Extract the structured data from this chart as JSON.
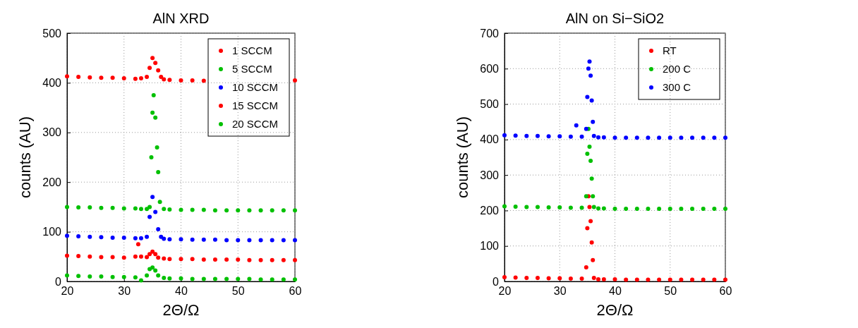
{
  "chart_data": [
    {
      "type": "scatter",
      "title": "AlN XRD",
      "xlabel": "2Θ/Ω",
      "ylabel": "counts (AU)",
      "xlim": [
        20,
        60
      ],
      "xticks": [
        20,
        30,
        40,
        50,
        60
      ],
      "ylim": [
        0,
        500
      ],
      "yticks": [
        0,
        100,
        200,
        300,
        400,
        500
      ],
      "grid": true,
      "legend": "top right",
      "marker": "circle",
      "series": [
        {
          "name": "1 SCCM",
          "color": "#ff0000",
          "x": [
            20,
            22,
            24,
            26,
            28,
            30,
            32,
            33,
            34,
            34.5,
            35,
            35.5,
            36,
            36.5,
            37,
            38,
            40,
            42,
            44,
            60
          ],
          "values": [
            413,
            412,
            411,
            410,
            410,
            409,
            408,
            409,
            412,
            430,
            450,
            440,
            425,
            412,
            407,
            406,
            405,
            405,
            404,
            405
          ]
        },
        {
          "name": "5 SCCM",
          "color": "#00c000",
          "x": [
            20,
            22,
            24,
            26,
            28,
            30,
            32,
            33,
            34,
            34.5,
            34.8,
            35,
            35.2,
            35.5,
            35.8,
            36,
            36.3,
            37,
            38,
            40,
            42,
            44,
            46,
            48,
            50,
            52,
            54,
            56,
            58,
            60
          ],
          "values": [
            150,
            149,
            149,
            148,
            148,
            147,
            147,
            146,
            146,
            150,
            250,
            340,
            375,
            330,
            270,
            220,
            160,
            146,
            145,
            144,
            144,
            144,
            143,
            143,
            143,
            143,
            143,
            143,
            143,
            143
          ]
        },
        {
          "name": "10 SCCM",
          "color": "#0000ff",
          "x": [
            20,
            22,
            24,
            26,
            28,
            30,
            32,
            33,
            34,
            34.5,
            35,
            35.5,
            36,
            36.5,
            37,
            38,
            40,
            42,
            44,
            46,
            48,
            50,
            52,
            54,
            56,
            58,
            60
          ],
          "values": [
            92,
            91,
            90,
            89,
            88,
            88,
            87,
            87,
            90,
            130,
            170,
            140,
            105,
            90,
            86,
            85,
            85,
            84,
            84,
            84,
            83,
            83,
            83,
            83,
            83,
            83,
            83
          ]
        },
        {
          "name": "15 SCCM",
          "color": "#ff0000",
          "x": [
            20,
            22,
            24,
            26,
            28,
            30,
            32,
            32.5,
            33,
            34,
            34.5,
            35,
            35.5,
            36,
            37,
            38,
            40,
            42,
            44,
            46,
            48,
            50,
            52,
            54,
            56,
            58,
            60
          ],
          "values": [
            52,
            51,
            50,
            49,
            49,
            48,
            50,
            75,
            50,
            49,
            55,
            60,
            55,
            48,
            46,
            45,
            45,
            45,
            44,
            44,
            44,
            44,
            43,
            43,
            43,
            43,
            43
          ]
        },
        {
          "name": "20 SCCM",
          "color": "#00c000",
          "x": [
            20,
            22,
            24,
            26,
            28,
            30,
            32,
            33,
            34,
            34.5,
            35,
            35.5,
            36,
            37,
            38,
            40,
            42,
            44,
            46,
            48,
            50,
            52,
            54,
            56,
            58,
            60
          ],
          "values": [
            12,
            11,
            10,
            10,
            9,
            9,
            8,
            2,
            12,
            25,
            28,
            22,
            12,
            7,
            6,
            6,
            5,
            5,
            5,
            5,
            5,
            5,
            4,
            4,
            4,
            4
          ]
        }
      ]
    },
    {
      "type": "scatter",
      "title": "AlN on Si−SiO2",
      "xlabel": "2Θ/Ω",
      "ylabel": "counts (AU)",
      "xlim": [
        20,
        60
      ],
      "xticks": [
        20,
        30,
        40,
        50,
        60
      ],
      "ylim": [
        0,
        700
      ],
      "yticks": [
        0,
        100,
        200,
        300,
        400,
        500,
        600,
        700
      ],
      "grid": true,
      "legend": "top right",
      "marker": "circle",
      "series": [
        {
          "name": "RT",
          "color": "#ff0000",
          "x": [
            20,
            22,
            24,
            26,
            28,
            30,
            32,
            34,
            34.8,
            35,
            35.2,
            35.4,
            35.6,
            35.8,
            36,
            36.2,
            37,
            38,
            40,
            42,
            44,
            46,
            48,
            50,
            52,
            54,
            56,
            58,
            60
          ],
          "values": [
            12,
            11,
            10,
            10,
            9,
            9,
            8,
            8,
            40,
            150,
            240,
            210,
            170,
            110,
            60,
            10,
            6,
            6,
            6,
            5,
            5,
            5,
            5,
            5,
            5,
            5,
            5,
            5,
            5
          ]
        },
        {
          "name": "200 C",
          "color": "#00c000",
          "x": [
            20,
            22,
            24,
            26,
            28,
            30,
            32,
            34,
            34.8,
            35,
            35.2,
            35.4,
            35.6,
            35.8,
            36,
            36.2,
            37,
            38,
            40,
            42,
            44,
            46,
            48,
            50,
            52,
            54,
            56,
            58,
            60
          ],
          "values": [
            212,
            211,
            210,
            210,
            209,
            209,
            208,
            208,
            240,
            360,
            430,
            380,
            340,
            290,
            240,
            210,
            206,
            206,
            205,
            205,
            205,
            205,
            205,
            205,
            205,
            205,
            205,
            205,
            205
          ]
        },
        {
          "name": "300 C",
          "color": "#0000ff",
          "x": [
            20,
            22,
            24,
            26,
            28,
            30,
            32,
            33,
            34,
            34.8,
            35,
            35.2,
            35.4,
            35.6,
            35.8,
            36,
            36.2,
            37,
            38,
            40,
            42,
            44,
            46,
            48,
            50,
            52,
            54,
            56,
            58,
            60
          ],
          "values": [
            412,
            411,
            410,
            410,
            409,
            409,
            408,
            440,
            408,
            430,
            520,
            600,
            620,
            580,
            510,
            450,
            410,
            406,
            406,
            405,
            405,
            405,
            405,
            405,
            405,
            405,
            405,
            405,
            405,
            405
          ]
        }
      ]
    }
  ]
}
